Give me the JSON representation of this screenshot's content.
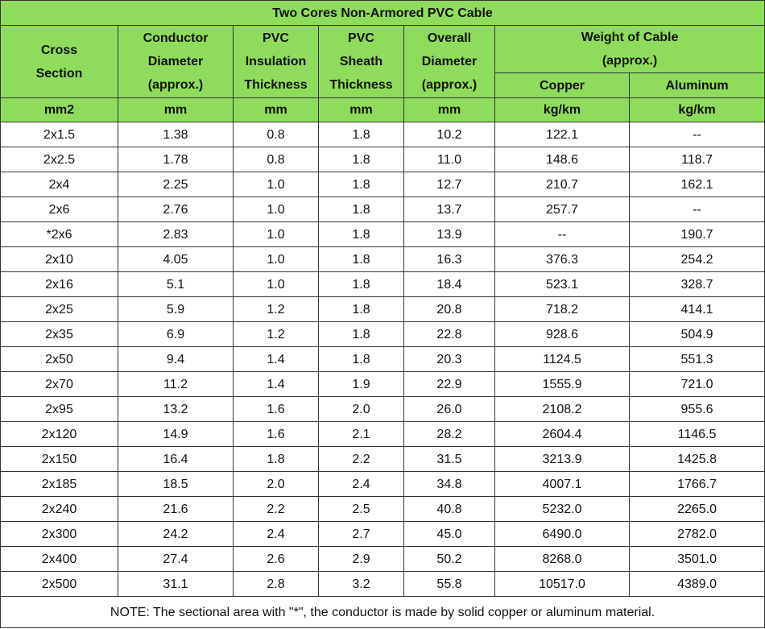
{
  "title": "Two Cores Non-Armored PVC Cable",
  "headers": {
    "cross_section": [
      "Cross",
      "Section"
    ],
    "conductor_diameter": [
      "Conductor",
      "Diameter",
      "(approx.)"
    ],
    "pvc_insulation": [
      "PVC",
      "Insulation",
      "Thickness"
    ],
    "pvc_sheath": [
      "PVC",
      "Sheath",
      "Thickness"
    ],
    "overall_diameter": [
      "Overall",
      "Diameter",
      "(approx.)"
    ],
    "weight": [
      "Weight of Cable",
      "(approx.)"
    ],
    "copper": "Copper",
    "aluminum": "Aluminum"
  },
  "units": [
    "mm2",
    "mm",
    "mm",
    "mm",
    "mm",
    "kg/km",
    "kg/km"
  ],
  "rows": [
    [
      "2x1.5",
      "1.38",
      "0.8",
      "1.8",
      "10.2",
      "122.1",
      "--"
    ],
    [
      "2x2.5",
      "1.78",
      "0.8",
      "1.8",
      "11.0",
      "148.6",
      "118.7"
    ],
    [
      "2x4",
      "2.25",
      "1.0",
      "1.8",
      "12.7",
      "210.7",
      "162.1"
    ],
    [
      "2x6",
      "2.76",
      "1.0",
      "1.8",
      "13.7",
      "257.7",
      "--"
    ],
    [
      "*2x6",
      "2.83",
      "1.0",
      "1.8",
      "13.9",
      "--",
      "190.7"
    ],
    [
      "2x10",
      "4.05",
      "1.0",
      "1.8",
      "16.3",
      "376.3",
      "254.2"
    ],
    [
      "2x16",
      "5.1",
      "1.0",
      "1.8",
      "18.4",
      "523.1",
      "328.7"
    ],
    [
      "2x25",
      "5.9",
      "1.2",
      "1.8",
      "20.8",
      "718.2",
      "414.1"
    ],
    [
      "2x35",
      "6.9",
      "1.2",
      "1.8",
      "22.8",
      "928.6",
      "504.9"
    ],
    [
      "2x50",
      "9.4",
      "1.4",
      "1.8",
      "20.3",
      "1124.5",
      "551.3"
    ],
    [
      "2x70",
      "11.2",
      "1.4",
      "1.9",
      "22.9",
      "1555.9",
      "721.0"
    ],
    [
      "2x95",
      "13.2",
      "1.6",
      "2.0",
      "26.0",
      "2108.2",
      "955.6"
    ],
    [
      "2x120",
      "14.9",
      "1.6",
      "2.1",
      "28.2",
      "2604.4",
      "1146.5"
    ],
    [
      "2x150",
      "16.4",
      "1.8",
      "2.2",
      "31.5",
      "3213.9",
      "1425.8"
    ],
    [
      "2x185",
      "18.5",
      "2.0",
      "2.4",
      "34.8",
      "4007.1",
      "1766.7"
    ],
    [
      "2x240",
      "21.6",
      "2.2",
      "2.5",
      "40.8",
      "5232.0",
      "2265.0"
    ],
    [
      "2x300",
      "24.2",
      "2.4",
      "2.7",
      "45.0",
      "6490.0",
      "2782.0"
    ],
    [
      "2x400",
      "27.4",
      "2.6",
      "2.9",
      "50.2",
      "8268.0",
      "3501.0"
    ],
    [
      "2x500",
      "31.1",
      "2.8",
      "3.2",
      "55.8",
      "10517.0",
      "4389.0"
    ]
  ],
  "note": "NOTE: The sectional area with \"*\", the conductor is made by solid copper or aluminum material.",
  "colors": {
    "header_green": "#8fdc5c",
    "border": "#333333"
  }
}
